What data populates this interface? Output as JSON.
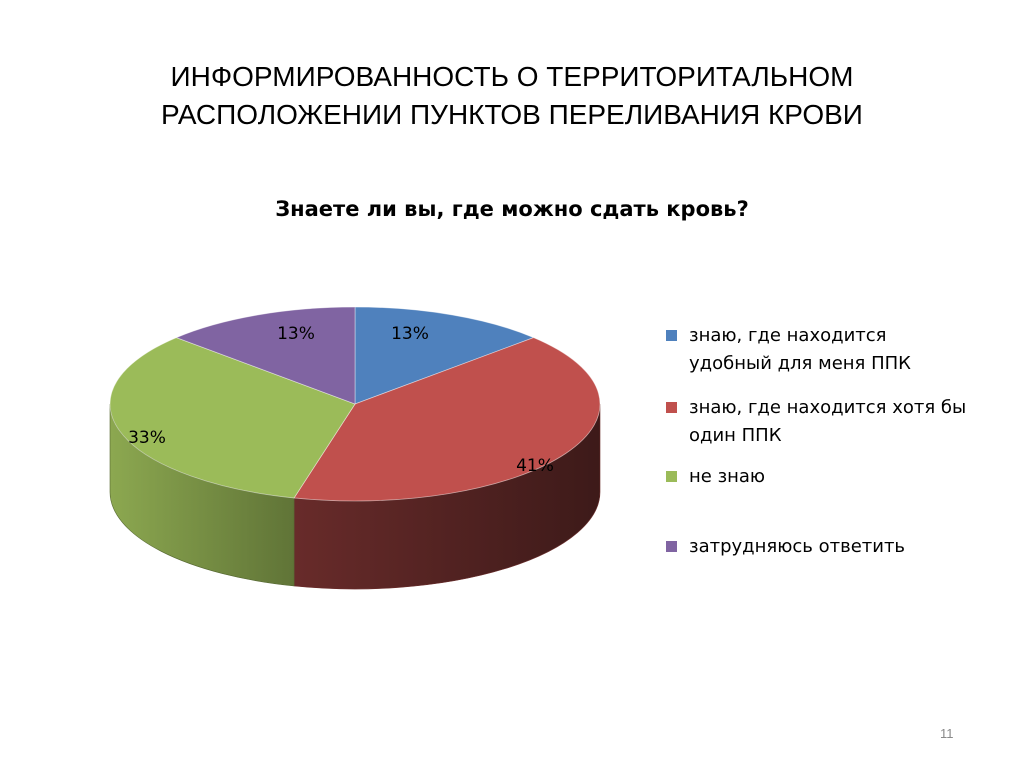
{
  "slide": {
    "title_line1": "ИНФОРМИРОВАННОСТЬ О ТЕРРИТОРИТАЛЬНОМ",
    "title_line2": "РАСПОЛОЖЕНИИ ПУНКТОВ ПЕРЕЛИВАНИЯ КРОВИ",
    "page_number": "11"
  },
  "chart_data": {
    "type": "pie",
    "title": "Знаете ли вы, где можно сдать кровь?",
    "style": "3d",
    "legend_position": "right",
    "slices": [
      {
        "label": "знаю, где находится удобный для меня ППК",
        "value": 13,
        "value_label": "13%",
        "color": "#4f81bd"
      },
      {
        "label": "знаю, где находится хотя бы один ППК",
        "value": 41,
        "value_label": "41%",
        "color": "#c0504d"
      },
      {
        "label": "не знаю",
        "value": 33,
        "value_label": "33%",
        "color": "#9bbb59"
      },
      {
        "label": "затрудняюсь ответить",
        "value": 13,
        "value_label": "13%",
        "color": "#8064a2"
      }
    ]
  }
}
